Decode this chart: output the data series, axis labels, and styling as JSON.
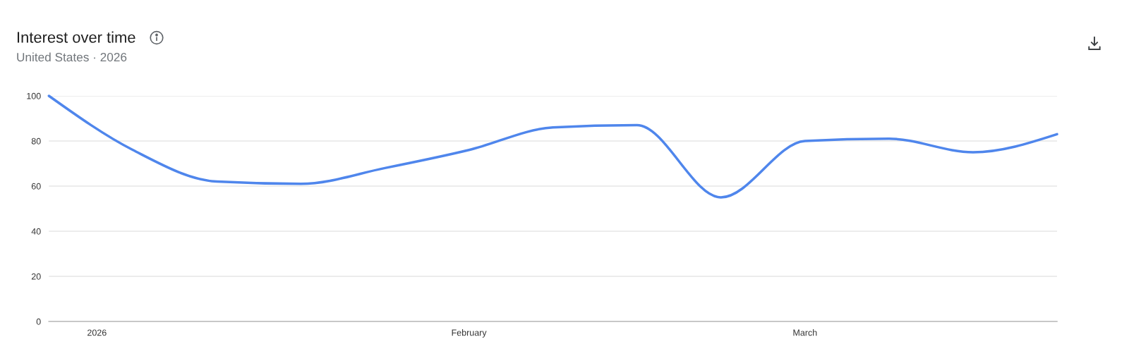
{
  "chart_data": {
    "type": "line",
    "title": "Interest over time",
    "subtitle": "United States · 2026",
    "x": [
      "2025-12-28",
      "2026-01-04",
      "2026-01-11",
      "2026-01-18",
      "2026-01-25",
      "2026-02-01",
      "2026-02-08",
      "2026-02-15",
      "2026-02-22",
      "2026-03-01",
      "2026-03-08",
      "2026-03-15",
      "2026-03-22"
    ],
    "series": [
      {
        "color": "#4f86ec",
        "values": [
          100,
          76,
          62,
          61,
          68,
          76,
          86,
          87,
          55,
          80,
          81,
          75,
          83
        ]
      }
    ],
    "xlim": [
      "2025-12-28",
      "2026-03-22"
    ],
    "xticks": [
      {
        "value": "2026-01-01",
        "label": "2026"
      },
      {
        "value": "2026-02-01",
        "label": "February"
      },
      {
        "value": "2026-03-01",
        "label": "March"
      }
    ],
    "ylim": [
      0,
      100
    ],
    "yticks": [
      0,
      20,
      40,
      60,
      80,
      100
    ],
    "grid": "y",
    "marker": "none",
    "line_style": "solid"
  }
}
